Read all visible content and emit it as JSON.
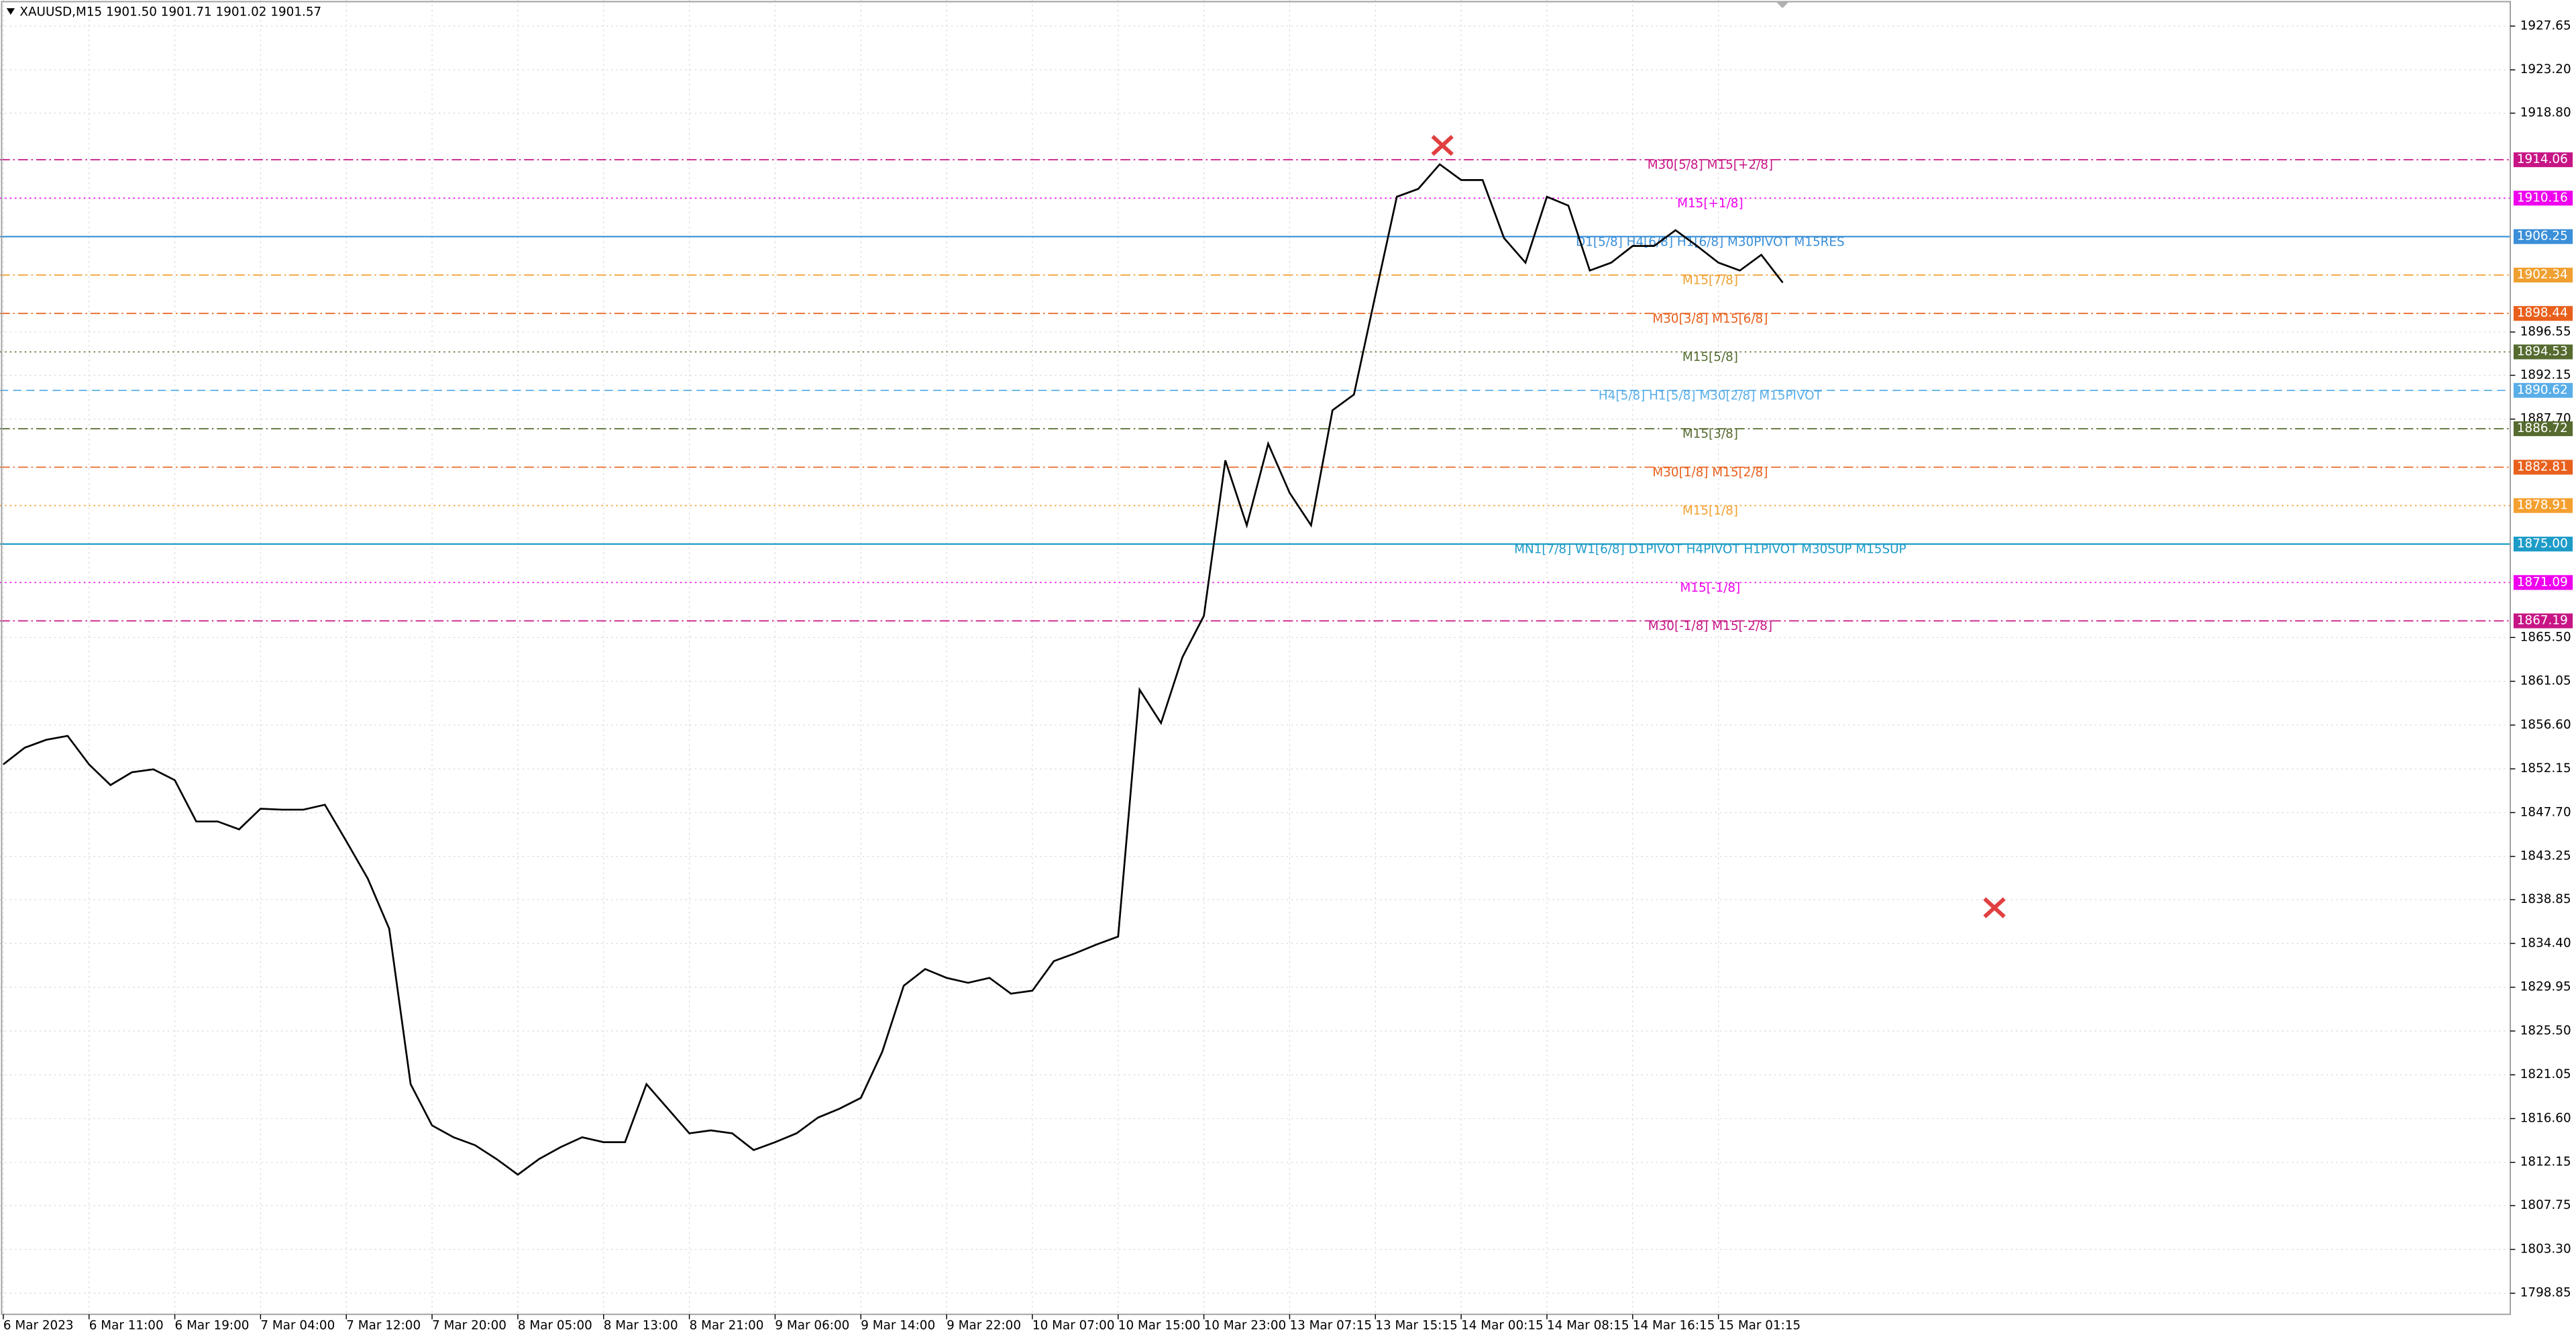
{
  "chart_data": {
    "type": "line",
    "title": "XAUUSD,M15  1901.50 1901.71 1901.02 1901.57",
    "categories": [
      "6 Mar 2023",
      null,
      null,
      null,
      "6 Mar 11:00",
      null,
      null,
      null,
      "6 Mar 19:00",
      null,
      null,
      null,
      "7 Mar 04:00",
      null,
      null,
      null,
      "7 Mar 12:00",
      null,
      null,
      null,
      "7 Mar 20:00",
      null,
      null,
      null,
      "8 Mar 05:00",
      null,
      null,
      null,
      "8 Mar 13:00",
      null,
      null,
      null,
      "8 Mar 21:00",
      null,
      null,
      null,
      "9 Mar 06:00",
      null,
      null,
      null,
      "9 Mar 14:00",
      null,
      null,
      null,
      "9 Mar 22:00",
      null,
      null,
      null,
      "10 Mar 07:00",
      null,
      null,
      null,
      "10 Mar 15:00",
      null,
      null,
      null,
      "10 Mar 23:00",
      null,
      null,
      null,
      "13 Mar 07:15",
      null,
      null,
      null,
      "13 Mar 15:15",
      null,
      null,
      null,
      "14 Mar 00:15",
      null,
      null,
      null,
      "14 Mar 08:15",
      null,
      null,
      null,
      "14 Mar 16:15",
      null,
      null,
      null,
      "15 Mar 01:15",
      null,
      null,
      null
    ],
    "values": [
      1852.6,
      1854.3,
      1855.1,
      1855.5,
      1852.6,
      1850.5,
      1851.8,
      1852.1,
      1851.0,
      1846.8,
      1846.8,
      1846.0,
      1848.1,
      1848.0,
      1848.0,
      1848.5,
      1844.8,
      1841.0,
      1835.9,
      1820.1,
      1815.9,
      1814.7,
      1813.9,
      1812.5,
      1810.9,
      1812.5,
      1813.7,
      1814.7,
      1814.2,
      1814.2,
      1820.1,
      1817.6,
      1815.1,
      1815.4,
      1815.1,
      1813.4,
      1814.2,
      1815.1,
      1816.7,
      1817.6,
      1818.7,
      1823.4,
      1830.1,
      1831.8,
      1830.9,
      1830.4,
      1830.9,
      1829.3,
      1829.6,
      1832.6,
      1833.4,
      1834.3,
      1835.1,
      1860.2,
      1856.8,
      1863.5,
      1867.7,
      1883.5,
      1876.9,
      1885.2,
      1880.2,
      1876.9,
      1888.6,
      1890.2,
      1900.3,
      1910.3,
      1911.1,
      1913.6,
      1912.0,
      1912.0,
      1906.1,
      1903.6,
      1910.3,
      1909.4,
      1902.8,
      1903.6,
      1905.3,
      1905.3,
      1906.9,
      1905.3,
      1903.6,
      1902.8,
      1904.4,
      1901.57
    ],
    "color": "#000000",
    "grid": true,
    "ylim": [
      1796.7,
      1930.3
    ],
    "yticks": [
      {
        "value": 1927.65,
        "label": "1927.65"
      },
      {
        "value": 1923.2,
        "label": "1923.20"
      },
      {
        "value": 1918.8,
        "label": "1918.80"
      },
      {
        "value": 1896.55,
        "label": "1896.55"
      },
      {
        "value": 1892.15,
        "label": "1892.15"
      },
      {
        "value": 1887.7,
        "label": "1887.70"
      },
      {
        "value": 1865.5,
        "label": "1865.50"
      },
      {
        "value": 1861.05,
        "label": "1861.05"
      },
      {
        "value": 1856.6,
        "label": "1856.60"
      },
      {
        "value": 1852.15,
        "label": "1852.15"
      },
      {
        "value": 1847.7,
        "label": "1847.70"
      },
      {
        "value": 1843.25,
        "label": "1843.25"
      },
      {
        "value": 1838.85,
        "label": "1838.85"
      },
      {
        "value": 1834.4,
        "label": "1834.40"
      },
      {
        "value": 1829.95,
        "label": "1829.95"
      },
      {
        "value": 1825.5,
        "label": "1825.50"
      },
      {
        "value": 1821.05,
        "label": "1821.05"
      },
      {
        "value": 1816.6,
        "label": "1816.60"
      },
      {
        "value": 1812.15,
        "label": "1812.15"
      },
      {
        "value": 1807.75,
        "label": "1807.75"
      },
      {
        "value": 1803.3,
        "label": "1803.30"
      },
      {
        "value": 1798.85,
        "label": "1798.85"
      }
    ],
    "levels": [
      {
        "value": 1914.06,
        "label": "1914.06",
        "text": "M30[5/8] M15[+2/8]",
        "color": "#c71585",
        "dash": "6 2 1 2"
      },
      {
        "value": 1910.16,
        "label": "1910.16",
        "text": "M15[+1/8]",
        "color": "#ee00ee",
        "dash": "1 2"
      },
      {
        "value": 1906.25,
        "label": "1906.25",
        "text": "D1[5/8] H4[6/8] H1[6/8] M30PIVOT M15RES",
        "color": "#3a8fd8",
        "dash": "none"
      },
      {
        "value": 1902.34,
        "label": "1902.34",
        "text": "M15[7/8]",
        "color": "#f0a030",
        "dash": "6 2 1 2"
      },
      {
        "value": 1898.44,
        "label": "1898.44",
        "text": "M30[3/8] M15[6/8]",
        "color": "#e8601c",
        "dash": "6 2 1 2"
      },
      {
        "value": 1894.53,
        "label": "1894.53",
        "text": "M15[5/8]",
        "color": "#556b2f",
        "dash": "1 2"
      },
      {
        "value": 1890.62,
        "label": "1890.62",
        "text": "H4[5/8] H1[5/8] M30[2/8] M15PIVOT",
        "color": "#5aaee8",
        "dash": "5 3"
      },
      {
        "value": 1886.72,
        "label": "1886.72",
        "text": "M15[3/8]",
        "color": "#556b2f",
        "dash": "6 2 1 2"
      },
      {
        "value": 1882.81,
        "label": "1882.81",
        "text": "M30[1/8] M15[2/8]",
        "color": "#e8601c",
        "dash": "6 2 1 2"
      },
      {
        "value": 1878.91,
        "label": "1878.91",
        "text": "M15[1/8]",
        "color": "#f4a030",
        "dash": "1 2"
      },
      {
        "value": 1875.0,
        "label": "1875.00",
        "text": "MN1[7/8] W1[6/8] D1PIVOT H4PIVOT H1PIVOT M30SUP M15SUP",
        "color": "#1e9cc8",
        "dash": "none"
      },
      {
        "value": 1871.09,
        "label": "1871.09",
        "text": "M15[-1/8]",
        "color": "#ee00ee",
        "dash": "1 2"
      },
      {
        "value": 1867.19,
        "label": "1867.19",
        "text": "M30[-1/8] M15[-2/8]",
        "color": "#c71585",
        "dash": "6 2 1 2"
      }
    ]
  }
}
